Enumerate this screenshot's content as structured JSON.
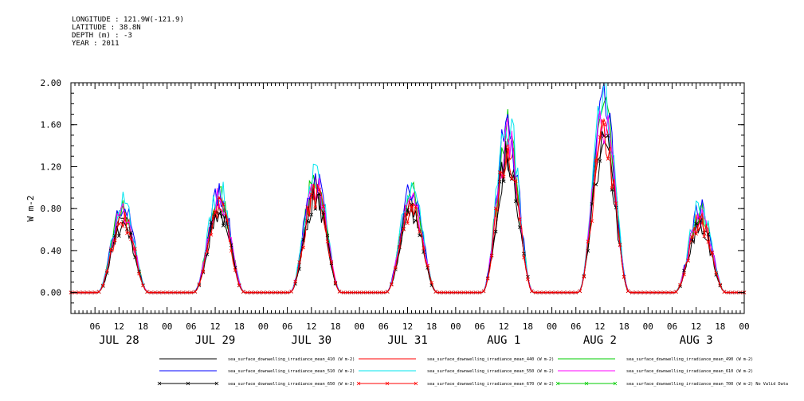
{
  "header": {
    "longitude": "LONGITUDE : 121.9W(-121.9)",
    "latitude": "LATITUDE : 38.8N",
    "depth": "DEPTH (m) : -3",
    "year": "YEAR : 2011"
  },
  "chart_data": {
    "type": "line",
    "title": "",
    "xlabel": "",
    "ylabel": "W m-2",
    "ylim": [
      -0.2,
      2.0
    ],
    "yticks": [
      "2.00",
      "1.60",
      "1.20",
      "0.80",
      "0.40",
      "0.00"
    ],
    "ytick_values": [
      2.0,
      1.6,
      1.2,
      0.8,
      0.4,
      0.0
    ],
    "xlim_hours": [
      0,
      168
    ],
    "hour_ticks": [
      "06",
      "12",
      "18",
      "00",
      "06",
      "12",
      "18",
      "00",
      "06",
      "12",
      "18",
      "00",
      "06",
      "12",
      "18",
      "00",
      "06",
      "12",
      "18",
      "00",
      "06",
      "12",
      "18",
      "00",
      "06",
      "12",
      "18",
      "00"
    ],
    "day_labels": [
      "JUL 28",
      "JUL 29",
      "JUL 30",
      "JUL 31",
      "AUG  1",
      "AUG  2",
      "AUG  3"
    ],
    "peak_by_day": {
      "dates": [
        "JUL 28",
        "JUL 29",
        "JUL 30",
        "JUL 31",
        "AUG  1",
        "AUG  2",
        "AUG  3"
      ],
      "values": [
        0.85,
        0.98,
        1.15,
        1.0,
        1.62,
        1.8,
        0.82
      ]
    },
    "series": [
      {
        "name": "sea_surface_downwelling_irradiance_mean_410 (W m-2)",
        "color": "#000000",
        "marker": "none",
        "scale": 0.8
      },
      {
        "name": "sea_surface_downwelling_irradiance_mean_440 (W m-2)",
        "color": "#ff0000",
        "marker": "none",
        "scale": 0.86
      },
      {
        "name": "sea_surface_downwelling_irradiance_mean_490 (W m-2)",
        "color": "#00cc00",
        "marker": "none",
        "scale": 0.94
      },
      {
        "name": "sea_surface_downwelling_irradiance_mean_510 (W m-2)",
        "color": "#0000ff",
        "marker": "none",
        "scale": 0.97
      },
      {
        "name": "sea_surface_downwelling_irradiance_mean_550 (W m-2)",
        "color": "#00e5ee",
        "marker": "none",
        "scale": 1.0
      },
      {
        "name": "sea_surface_downwelling_irradiance_mean_610 (W m-2)",
        "color": "#ff00ff",
        "marker": "none",
        "scale": 0.9
      },
      {
        "name": "sea_surface_downwelling_irradiance_mean_650 (W m-2)",
        "color": "#000000",
        "marker": "x",
        "scale": 0.78
      },
      {
        "name": "sea_surface_downwelling_irradiance_mean_670 (W m-2)",
        "color": "#ff0000",
        "marker": "x",
        "scale": 0.82
      },
      {
        "name": "sea_surface_downwelling_irradiance_mean_700 (W m-2) No Valid Data",
        "color": "#00cc00",
        "marker": "x",
        "scale": 0
      }
    ],
    "legend_placement": "bottom",
    "grid": false
  }
}
